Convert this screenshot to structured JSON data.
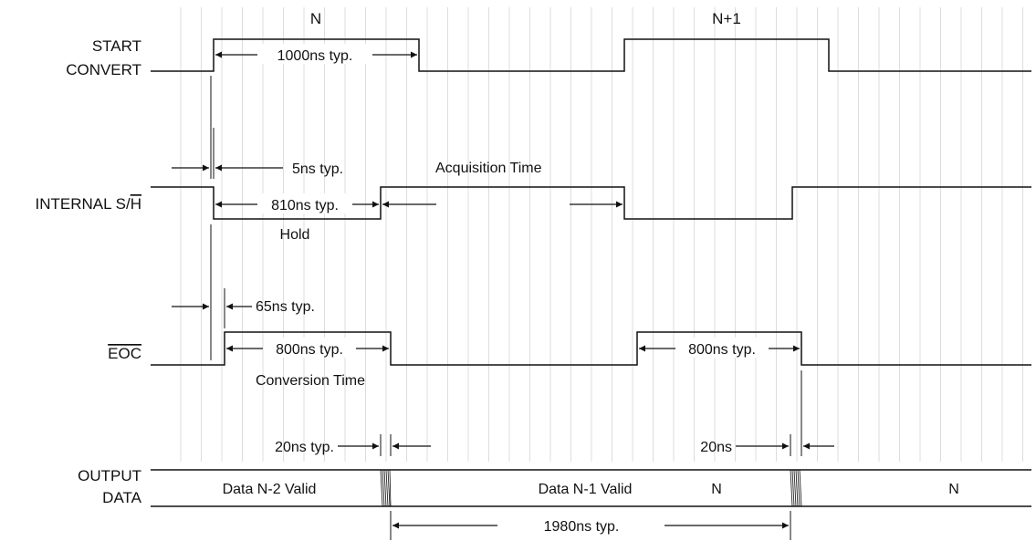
{
  "cycles": {
    "n": "N",
    "n_plus_1": "N+1"
  },
  "signals": {
    "start_convert": [
      "START",
      "CONVERT"
    ],
    "internal_sh": {
      "prefix": "INTERNAL S/",
      "bar": "H"
    },
    "eoc": "EOC",
    "output_data": [
      "OUTPUT",
      "DATA"
    ]
  },
  "annotations": {
    "t_1000": "1000ns typ.",
    "t_5": "5ns typ.",
    "acquisition": "Acquisition Time",
    "t_810": "810ns typ.",
    "hold": "Hold",
    "t_65": "65ns typ.",
    "t_800_a": "800ns typ.",
    "conversion": "Conversion Time",
    "t_800_b": "800ns typ.",
    "t_20": "20ns typ.",
    "t_20_short": "20ns",
    "t_1980": "1980ns typ."
  },
  "data_fields": {
    "n_minus_2": "Data N-2 Valid",
    "n_minus_1": "Data N-1 Valid",
    "n_mid": "N",
    "n_right": "N"
  },
  "colors": {
    "line": "#111111",
    "grid": "#dddddd",
    "background": "#ffffff"
  }
}
